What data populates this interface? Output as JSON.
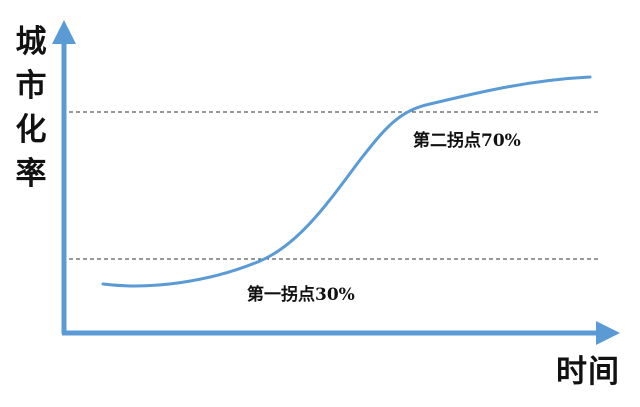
{
  "diagram": {
    "y_axis_label": "城市化率",
    "x_axis_label": "时间",
    "inflection_points": [
      {
        "label": "第一拐点30%",
        "value_percent": 30
      },
      {
        "label": "第二拐点70%",
        "value_percent": 70
      }
    ],
    "colors": {
      "axis": "#5b9bd5",
      "curve": "#5b9bd5",
      "guide_lines": "#333333",
      "text": "#111111"
    }
  }
}
